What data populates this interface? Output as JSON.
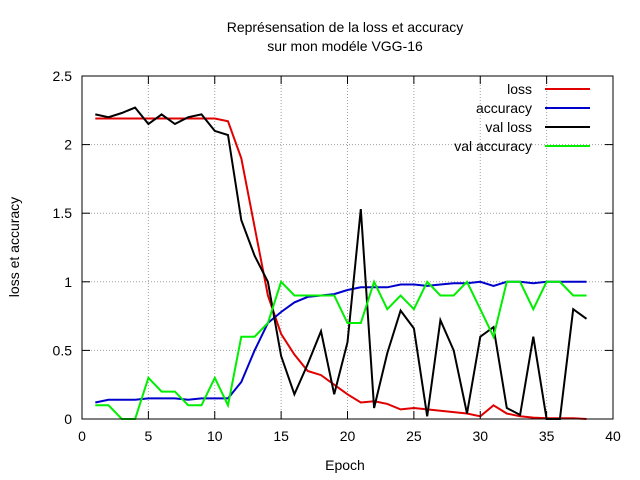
{
  "chart_data": {
    "type": "line",
    "title_lines": [
      "Représensation de la loss et accuracy",
      "sur mon modéle VGG-16"
    ],
    "xlabel": "Epoch",
    "ylabel": "loss et accuracy",
    "xlim": [
      0,
      40
    ],
    "ylim": [
      0,
      2.5
    ],
    "xticks": [
      0,
      5,
      10,
      15,
      20,
      25,
      30,
      35,
      40
    ],
    "yticks": [
      0,
      0.5,
      1,
      1.5,
      2,
      2.5
    ],
    "xtick_labels": [
      "0",
      "5",
      "10",
      "15",
      "20",
      "25",
      "30",
      "35",
      "40"
    ],
    "ytick_labels": [
      "0",
      "0.5",
      "1",
      "1.5",
      "2",
      "2.5"
    ],
    "grid": true,
    "legend_position": "top-right",
    "x": [
      1,
      2,
      3,
      4,
      5,
      6,
      7,
      8,
      9,
      10,
      11,
      12,
      13,
      14,
      15,
      16,
      17,
      18,
      19,
      20,
      21,
      22,
      23,
      24,
      25,
      26,
      27,
      28,
      29,
      30,
      31,
      32,
      33,
      34,
      35,
      36,
      37,
      38
    ],
    "series": [
      {
        "name": "loss",
        "color": "#e00000",
        "values": [
          2.19,
          2.19,
          2.19,
          2.19,
          2.19,
          2.19,
          2.19,
          2.19,
          2.19,
          2.19,
          2.17,
          1.9,
          1.4,
          0.9,
          0.62,
          0.47,
          0.35,
          0.32,
          0.25,
          0.18,
          0.12,
          0.13,
          0.11,
          0.07,
          0.08,
          0.07,
          0.06,
          0.05,
          0.04,
          0.02,
          0.1,
          0.04,
          0.02,
          0.01,
          0.005,
          0.005,
          0.005,
          0.0
        ]
      },
      {
        "name": "accuracy",
        "color": "#0000cc",
        "values": [
          0.12,
          0.14,
          0.14,
          0.14,
          0.15,
          0.15,
          0.15,
          0.14,
          0.15,
          0.15,
          0.15,
          0.27,
          0.5,
          0.7,
          0.78,
          0.85,
          0.89,
          0.9,
          0.91,
          0.94,
          0.96,
          0.96,
          0.96,
          0.98,
          0.98,
          0.97,
          0.98,
          0.99,
          0.99,
          1.0,
          0.97,
          1.0,
          1.0,
          0.99,
          1.0,
          1.0,
          1.0,
          1.0
        ]
      },
      {
        "name": "val loss",
        "color": "#000000",
        "values": [
          2.22,
          2.2,
          2.23,
          2.27,
          2.15,
          2.22,
          2.15,
          2.2,
          2.22,
          2.1,
          2.07,
          1.45,
          1.19,
          1.0,
          0.46,
          0.18,
          0.4,
          0.64,
          0.18,
          0.56,
          1.53,
          0.08,
          0.48,
          0.79,
          0.66,
          0.02,
          0.72,
          0.5,
          0.04,
          0.6,
          0.67,
          0.08,
          0.03,
          0.6,
          0.0,
          0.0,
          0.8,
          0.73
        ]
      },
      {
        "name": "val accuracy",
        "color": "#00ee00",
        "values": [
          0.1,
          0.1,
          0.0,
          0.0,
          0.3,
          0.2,
          0.2,
          0.1,
          0.1,
          0.3,
          0.1,
          0.6,
          0.6,
          0.7,
          1.0,
          0.9,
          0.9,
          0.9,
          0.9,
          0.7,
          0.7,
          1.0,
          0.8,
          0.9,
          0.8,
          1.0,
          0.9,
          0.9,
          1.0,
          0.8,
          0.6,
          1.0,
          1.0,
          0.8,
          1.0,
          1.0,
          0.9,
          0.9
        ]
      }
    ]
  }
}
